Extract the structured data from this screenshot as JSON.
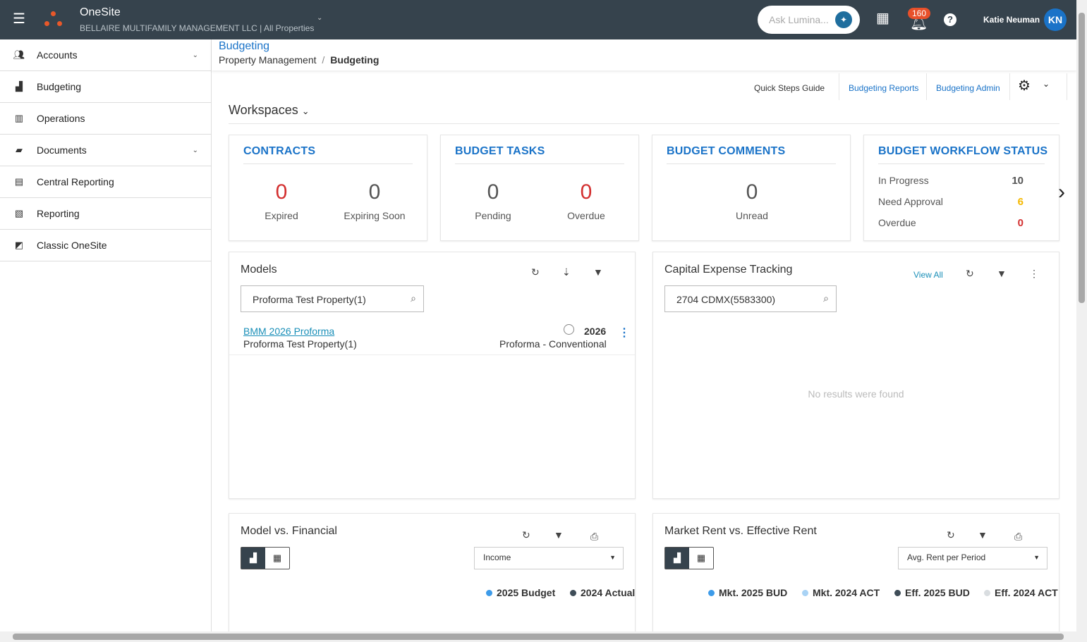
{
  "app": {
    "name": "OneSite",
    "org": "BELLAIRE MULTIFAMILY MANAGEMENT LLC | All Properties"
  },
  "header": {
    "ask_placeholder": "Ask Lumina...",
    "notifications": "160",
    "user": "Katie Neuman",
    "initials": "KN"
  },
  "sidebar": {
    "items": [
      {
        "label": "Accounts",
        "icon": "users-icon",
        "chev": true
      },
      {
        "label": "Budgeting",
        "icon": "bar-chart-icon"
      },
      {
        "label": "Operations",
        "icon": "building-icon"
      },
      {
        "label": "Documents",
        "icon": "folder-icon",
        "chev": true
      },
      {
        "label": "Central Reporting",
        "icon": "document-icon"
      },
      {
        "label": "Reporting",
        "icon": "report-icon"
      },
      {
        "label": "Classic OneSite",
        "icon": "classic-icon"
      }
    ]
  },
  "breadcrumb": {
    "title": "Budgeting",
    "parent": "Property Management",
    "sep": "/",
    "current": "Budgeting"
  },
  "toolbar": {
    "quick": "Quick Steps Guide",
    "reports": "Budgeting Reports",
    "admin": "Budgeting Admin"
  },
  "workspaces": "Workspaces",
  "contracts": {
    "title": "CONTRACTS",
    "expired": "0",
    "expired_label": "Expired",
    "expiring": "0",
    "expiring_label": "Expiring Soon"
  },
  "tasks": {
    "title": "BUDGET TASKS",
    "pending": "0",
    "pending_label": "Pending",
    "overdue": "0",
    "overdue_label": "Overdue"
  },
  "comments": {
    "title": "BUDGET COMMENTS",
    "unread": "0",
    "unread_label": "Unread"
  },
  "workflow": {
    "title": "BUDGET WORKFLOW STATUS",
    "rows": [
      {
        "label": "In Progress",
        "value": "10",
        "color": "#555555"
      },
      {
        "label": "Need Approval",
        "value": "6",
        "color": "#f5b800"
      },
      {
        "label": "Overdue",
        "value": "0",
        "color": "#d32f2f"
      }
    ]
  },
  "models": {
    "title": "Models",
    "search": "Proforma Test Property(1)",
    "item": {
      "name": "BMM 2026 Proforma",
      "property": "Proforma Test Property(1)",
      "year": "2026",
      "type": "Proforma - Conventional"
    }
  },
  "capex": {
    "title": "Capital Expense Tracking",
    "view_all": "View All",
    "search": "2704 CDMX(5583300)",
    "empty": "No results were found"
  },
  "mvf": {
    "title": "Model vs. Financial",
    "select": "Income",
    "legend": [
      {
        "name": "2025 Budget",
        "color": "#3d9be9"
      },
      {
        "name": "2024 Actual",
        "color": "#3f4d58"
      }
    ]
  },
  "mre": {
    "title": "Market Rent vs. Effective Rent",
    "select": "Avg. Rent per Period",
    "legend": [
      {
        "name": "Mkt. 2025 BUD",
        "color": "#3d9be9"
      },
      {
        "name": "Mkt. 2024 ACT",
        "color": "#a9d3f5"
      },
      {
        "name": "Eff. 2025 BUD",
        "color": "#3f4d58"
      },
      {
        "name": "Eff. 2024 ACT",
        "color": "#d9dde0"
      }
    ]
  }
}
